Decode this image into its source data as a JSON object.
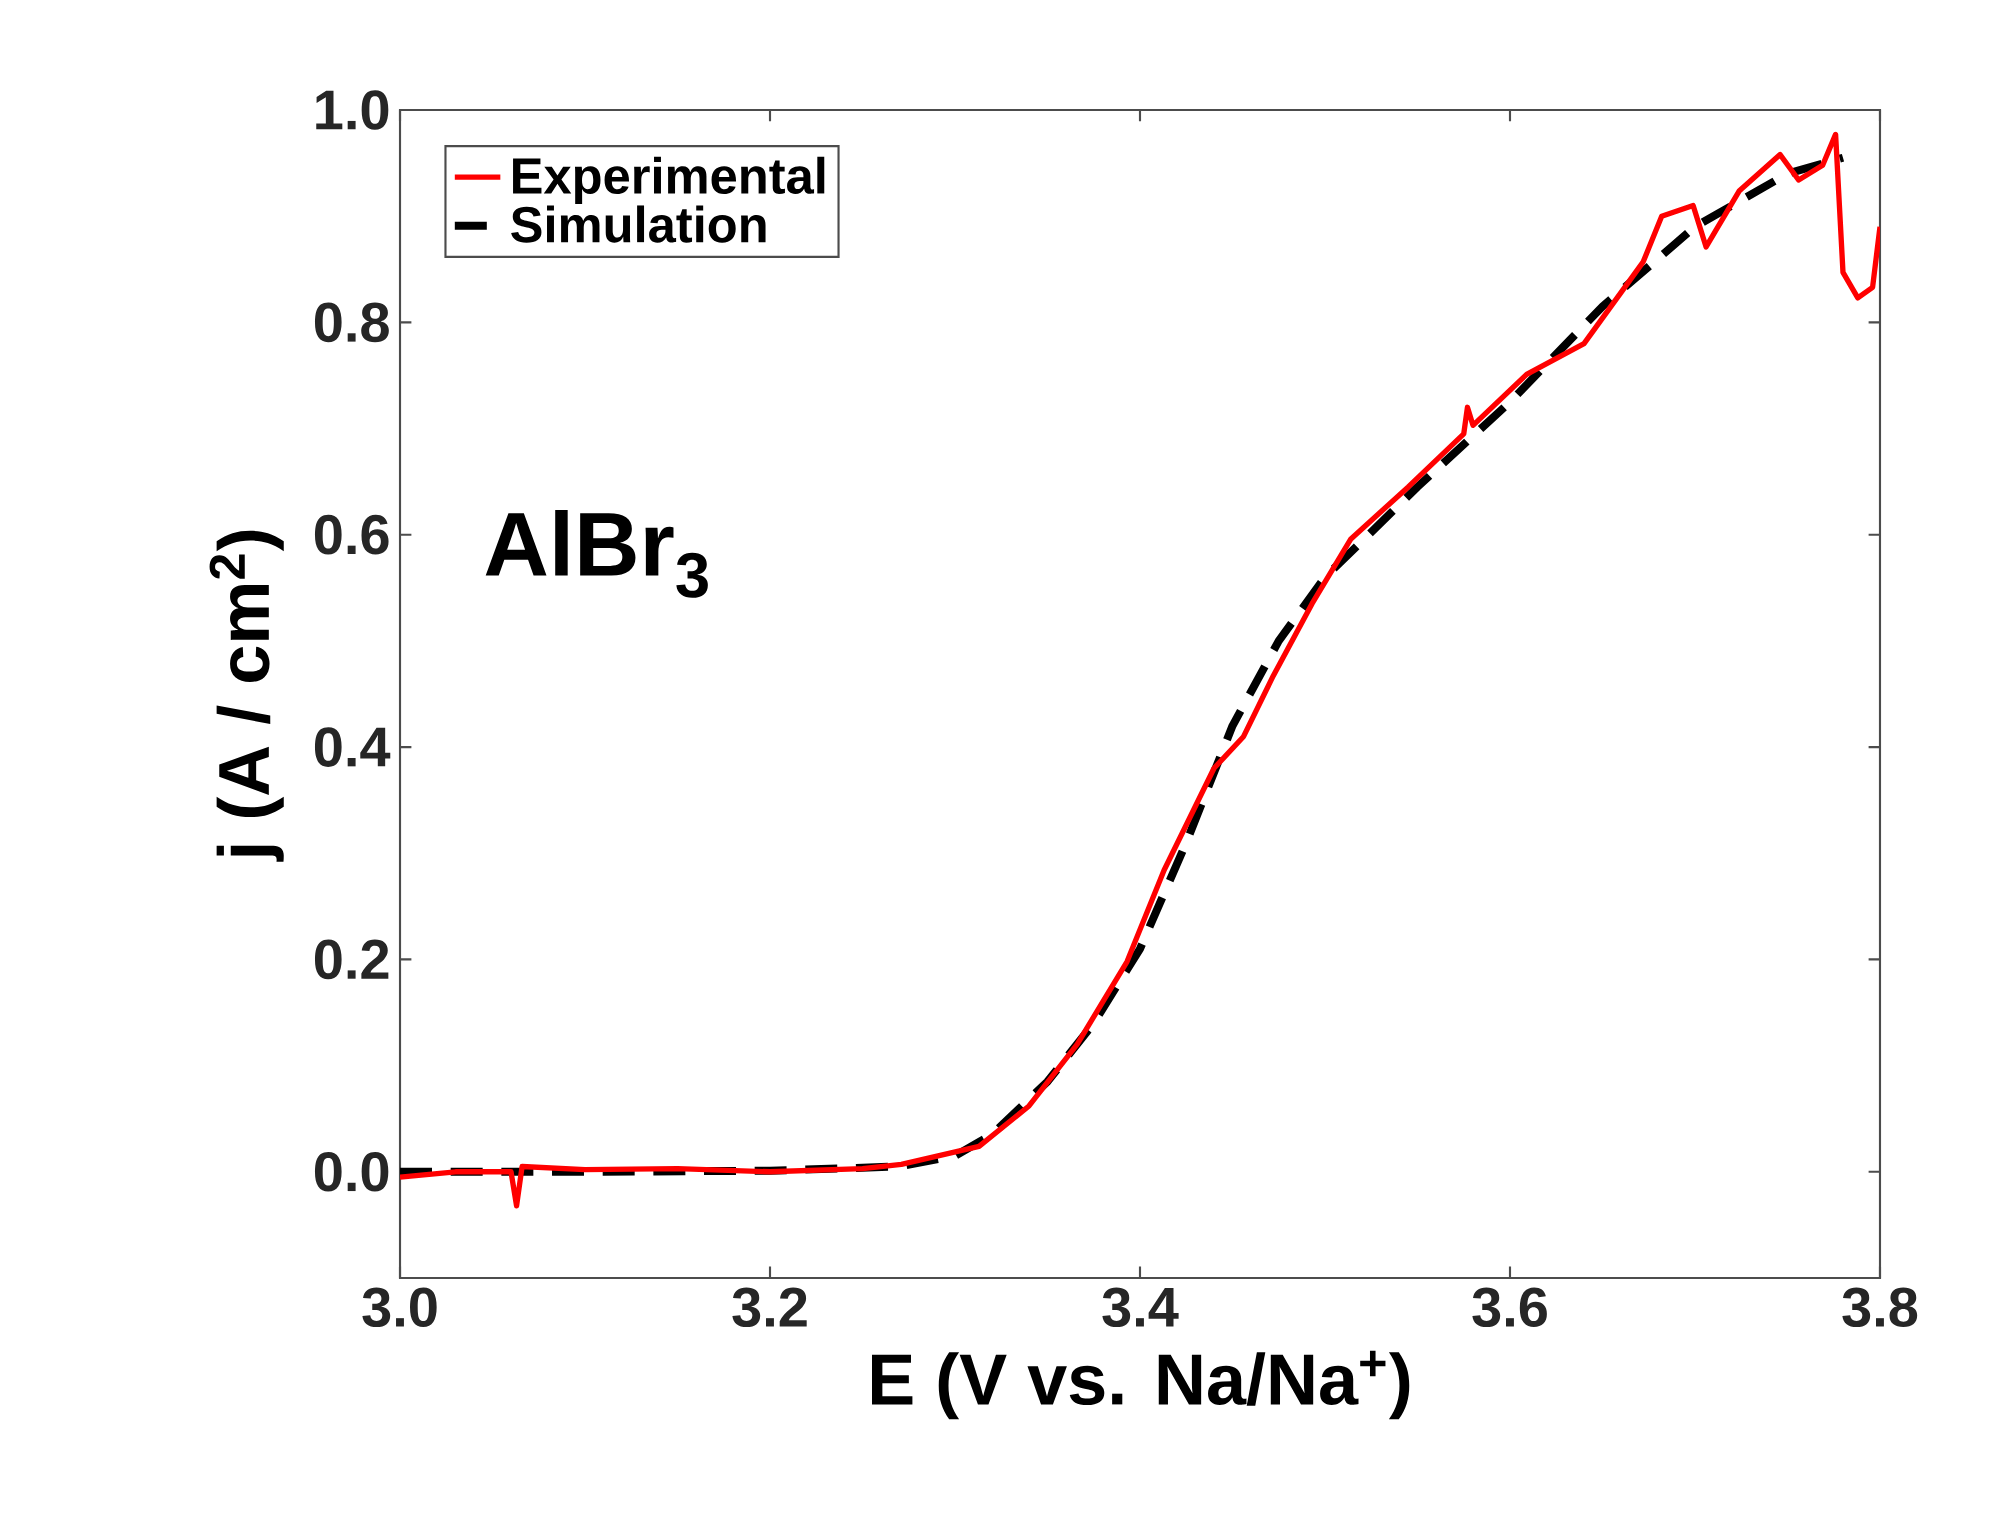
{
  "chart_data": {
    "type": "line",
    "xlabel": "E (V vs. Na/Na$^{+}$)",
    "ylabel": "j (A / cm$^{2}$)",
    "xlim": [
      3.0,
      3.8
    ],
    "ylim": [
      -0.1,
      1.0
    ],
    "xticks": [
      {
        "value": 3.0,
        "label": "3.0"
      },
      3.2,
      3.4,
      3.6,
      3.8
    ],
    "yticks": [
      {
        "value": 0.0,
        "label": "0.0"
      },
      0.2,
      0.4,
      0.6,
      0.8,
      {
        "value": 1.0,
        "label": "1.0"
      }
    ],
    "grid": false,
    "legend": "top left",
    "annotations": [
      "AlBr$_{3}$"
    ],
    "series": [
      {
        "name": "Experimental",
        "color": "#ff0000",
        "line_style": "solid",
        "x": [
          3.0,
          3.03,
          3.06,
          3.063,
          3.066,
          3.1,
          3.15,
          3.2,
          3.25,
          3.271,
          3.313,
          3.34,
          3.366,
          3.393,
          3.413,
          3.44,
          3.456,
          3.472,
          3.493,
          3.514,
          3.545,
          3.575,
          3.577,
          3.58,
          3.609,
          3.64,
          3.672,
          3.682,
          3.699,
          3.706,
          3.724,
          3.746,
          3.756,
          3.769,
          3.776,
          3.78,
          3.788,
          3.796,
          3.8
        ],
        "values": [
          -0.005,
          0.0,
          0.0,
          -0.032,
          0.005,
          0.002,
          0.003,
          0.0,
          0.003,
          0.007,
          0.024,
          0.062,
          0.12,
          0.198,
          0.284,
          0.38,
          0.41,
          0.467,
          0.535,
          0.596,
          0.645,
          0.695,
          0.72,
          0.703,
          0.751,
          0.78,
          0.857,
          0.9,
          0.91,
          0.871,
          0.924,
          0.958,
          0.934,
          0.948,
          0.977,
          0.847,
          0.823,
          0.833,
          0.89
        ]
      },
      {
        "name": "Simulation",
        "color": "#000000",
        "line_style": "dashed",
        "x": [
          3.0,
          3.1,
          3.2,
          3.27,
          3.3,
          3.32,
          3.35,
          3.375,
          3.4,
          3.425,
          3.45,
          3.475,
          3.5,
          3.55,
          3.6,
          3.65,
          3.7,
          3.75,
          3.78
        ],
        "values": [
          0.0,
          0.0,
          0.001,
          0.005,
          0.015,
          0.035,
          0.085,
          0.14,
          0.21,
          0.31,
          0.42,
          0.5,
          0.56,
          0.645,
          0.725,
          0.815,
          0.89,
          0.94,
          0.955
        ]
      }
    ]
  }
}
